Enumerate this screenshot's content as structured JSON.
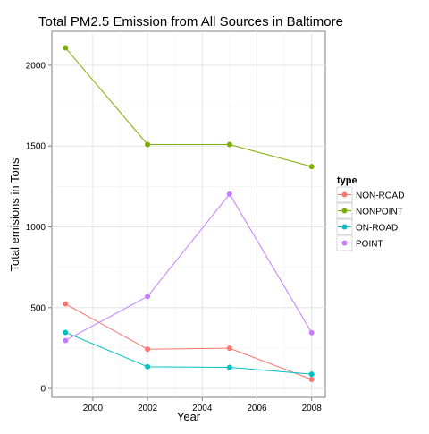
{
  "chart_data": {
    "type": "line",
    "title": "Total PM2.5 Emission from All Sources in Baltimore",
    "xlabel": "Year",
    "ylabel": "Total emisions in Tons",
    "x": [
      1999,
      2002,
      2005,
      2008
    ],
    "xlim": [
      1998.5,
      2008.5
    ],
    "ylim": [
      -55,
      2210
    ],
    "x_ticks": [
      2000,
      2002,
      2004,
      2006,
      2008
    ],
    "x_tick_labels": [
      "2000",
      "2002",
      "2004",
      "2006",
      "2008"
    ],
    "y_ticks": [
      0,
      500,
      1000,
      1500,
      2000
    ],
    "y_tick_labels": [
      "0",
      "500",
      "1000",
      "1500",
      "2000"
    ],
    "grid": true,
    "legend": {
      "title": "type",
      "placement": "right"
    },
    "series": [
      {
        "name": "NON-ROAD",
        "color": "#F8766D",
        "values": [
          522.94,
          242.85,
          248.93,
          55.82
        ]
      },
      {
        "name": "NONPOINT",
        "color": "#7CAE00",
        "values": [
          2107.63,
          1509.5,
          1509.5,
          1373.21
        ]
      },
      {
        "name": "ON-ROAD",
        "color": "#00BFC4",
        "values": [
          346.82,
          134.31,
          130.43,
          88.28
        ]
      },
      {
        "name": "POINT",
        "color": "#C77CFF",
        "values": [
          296.8,
          569.26,
          1202.49,
          344.98
        ]
      }
    ]
  }
}
